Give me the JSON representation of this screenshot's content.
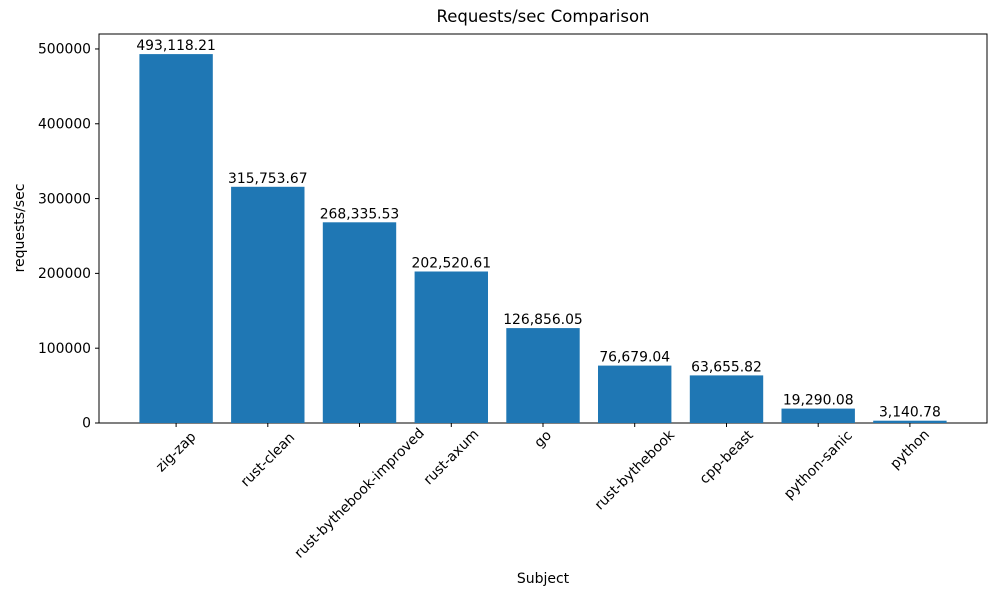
{
  "chart_data": {
    "type": "bar",
    "title": "Requests/sec Comparison",
    "xlabel": "Subject",
    "ylabel": "requests/sec",
    "categories": [
      "zig-zap",
      "rust-clean",
      "rust-bythebook-improved",
      "rust-axum",
      "go",
      "rust-bythebook",
      "cpp-beast",
      "python-sanic",
      "python"
    ],
    "values": [
      493118.21,
      315753.67,
      268335.53,
      202520.61,
      126856.05,
      76679.04,
      63655.82,
      19290.08,
      3140.78
    ],
    "value_labels": [
      "493,118.21",
      "315,753.67",
      "268,335.53",
      "202,520.61",
      "126,856.05",
      "76,679.04",
      "63,655.82",
      "19,290.08",
      "3,140.78"
    ],
    "yticks": [
      0,
      100000,
      200000,
      300000,
      400000,
      500000
    ],
    "ylim": [
      0,
      520000
    ],
    "bar_color": "#1f77b4",
    "axis_color": "#000000",
    "grid": false,
    "legend": null
  }
}
